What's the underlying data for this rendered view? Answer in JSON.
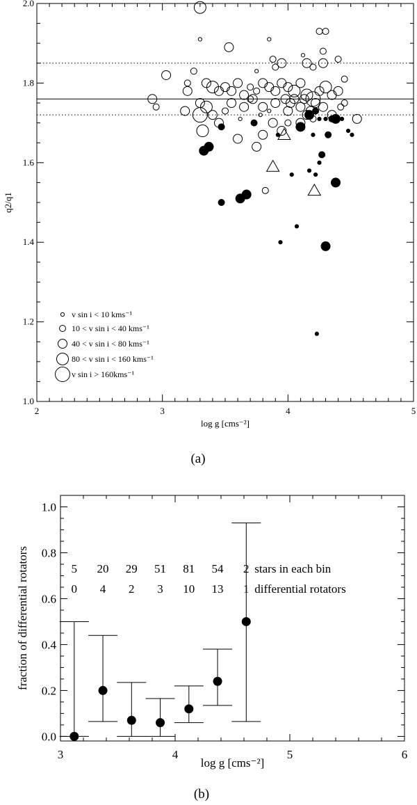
{
  "chart_data": [
    {
      "type": "scatter",
      "panel_label": "(a)",
      "xlabel": "log g [cms⁻²]",
      "ylabel": "q2/q1",
      "xlim": [
        2,
        5
      ],
      "ylim": [
        1.0,
        2.0
      ],
      "x_ticks": [
        "2",
        "3",
        "4",
        "5"
      ],
      "y_ticks": [
        "1.0",
        "1.2",
        "1.4",
        "1.6",
        "1.8",
        "2.0"
      ],
      "reference_lines": {
        "solid": 1.76,
        "dotted": [
          1.72,
          1.85
        ]
      },
      "legend": [
        {
          "size_class": 1,
          "text": "v sin i < 10 kms⁻¹"
        },
        {
          "size_class": 2,
          "text": "10 < v sin i < 40 kms⁻¹"
        },
        {
          "size_class": 3,
          "text": "40 < v sin i < 80 kms⁻¹"
        },
        {
          "size_class": 4,
          "text": "80 < v sin i < 160 kms⁻¹"
        },
        {
          "size_class": 5,
          "text": "v sin i > 160kms⁻¹"
        }
      ],
      "open_points": [
        [
          3.3,
          1.99,
          4
        ],
        [
          3.3,
          1.91,
          1
        ],
        [
          3.85,
          1.91,
          1
        ],
        [
          4.25,
          1.93,
          2
        ],
        [
          4.3,
          1.93,
          2
        ],
        [
          3.53,
          1.89,
          3
        ],
        [
          4.28,
          1.88,
          2
        ],
        [
          4.4,
          1.86,
          2
        ],
        [
          4.12,
          1.87,
          1
        ],
        [
          4.15,
          1.85,
          3
        ],
        [
          4.28,
          1.85,
          3
        ],
        [
          3.88,
          1.86,
          2
        ],
        [
          3.9,
          1.84,
          2
        ],
        [
          3.95,
          1.85,
          3
        ],
        [
          4.2,
          1.84,
          2
        ],
        [
          3.25,
          1.83,
          2
        ],
        [
          3.03,
          1.82,
          3
        ],
        [
          3.75,
          1.83,
          1
        ],
        [
          4.45,
          1.81,
          2
        ],
        [
          2.92,
          1.76,
          3
        ],
        [
          2.95,
          1.74,
          2
        ],
        [
          3.2,
          1.8,
          2
        ],
        [
          3.2,
          1.78,
          3
        ],
        [
          3.35,
          1.8,
          3
        ],
        [
          3.4,
          1.79,
          4
        ],
        [
          3.45,
          1.78,
          3
        ],
        [
          3.5,
          1.79,
          3
        ],
        [
          3.55,
          1.78,
          3
        ],
        [
          3.6,
          1.8,
          3
        ],
        [
          3.65,
          1.77,
          3
        ],
        [
          3.7,
          1.79,
          2
        ],
        [
          3.75,
          1.78,
          2
        ],
        [
          3.8,
          1.8,
          3
        ],
        [
          3.85,
          1.79,
          3
        ],
        [
          3.9,
          1.78,
          3
        ],
        [
          3.95,
          1.8,
          3
        ],
        [
          4.0,
          1.79,
          3
        ],
        [
          4.05,
          1.78,
          4
        ],
        [
          4.1,
          1.8,
          3
        ],
        [
          4.15,
          1.77,
          4
        ],
        [
          4.2,
          1.76,
          5
        ],
        [
          4.25,
          1.78,
          3
        ],
        [
          4.3,
          1.79,
          4
        ],
        [
          4.35,
          1.77,
          3
        ],
        [
          4.4,
          1.78,
          3
        ],
        [
          4.45,
          1.75,
          2
        ],
        [
          3.3,
          1.75,
          3
        ],
        [
          3.35,
          1.74,
          4
        ],
        [
          3.4,
          1.72,
          3
        ],
        [
          3.5,
          1.73,
          2
        ],
        [
          3.55,
          1.75,
          3
        ],
        [
          3.65,
          1.74,
          3
        ],
        [
          3.7,
          1.76,
          2
        ],
        [
          3.8,
          1.74,
          3
        ],
        [
          3.9,
          1.75,
          3
        ],
        [
          4.0,
          1.73,
          3
        ],
        [
          4.05,
          1.76,
          3
        ],
        [
          4.1,
          1.74,
          3
        ],
        [
          4.18,
          1.73,
          3
        ],
        [
          4.22,
          1.75,
          3
        ],
        [
          4.28,
          1.74,
          3
        ],
        [
          4.35,
          1.72,
          3
        ],
        [
          4.42,
          1.74,
          2
        ],
        [
          4.55,
          1.71,
          3
        ],
        [
          3.18,
          1.73,
          3
        ],
        [
          3.3,
          1.72,
          5
        ],
        [
          3.32,
          1.68,
          4
        ],
        [
          3.45,
          1.7,
          3
        ],
        [
          3.6,
          1.66,
          3
        ],
        [
          3.75,
          1.64,
          3
        ],
        [
          3.8,
          1.67,
          3
        ],
        [
          3.88,
          1.7,
          3
        ],
        [
          3.95,
          1.68,
          3
        ],
        [
          4.1,
          1.7,
          3
        ],
        [
          4.15,
          1.72,
          3
        ],
        [
          3.85,
          1.73,
          1
        ],
        [
          3.78,
          1.72,
          1
        ],
        [
          3.62,
          1.71,
          1
        ],
        [
          3.82,
          1.53,
          2
        ],
        [
          4.0,
          1.7,
          2
        ],
        [
          3.72,
          1.76,
          3
        ],
        [
          3.98,
          1.76,
          3
        ],
        [
          4.02,
          1.75,
          3
        ],
        [
          4.13,
          1.76,
          3
        ],
        [
          4.2,
          1.71,
          2
        ]
      ],
      "filled_points": [
        [
          3.47,
          1.69,
          2
        ],
        [
          3.73,
          1.7,
          2
        ],
        [
          3.92,
          1.67,
          1
        ],
        [
          4.1,
          1.69,
          3
        ],
        [
          4.17,
          1.72,
          3
        ],
        [
          4.22,
          1.73,
          2
        ],
        [
          4.25,
          1.71,
          1
        ],
        [
          4.3,
          1.71,
          1
        ],
        [
          4.35,
          1.71,
          2
        ],
        [
          4.38,
          1.71,
          3
        ],
        [
          4.43,
          1.71,
          1
        ],
        [
          4.48,
          1.68,
          1
        ],
        [
          4.51,
          1.67,
          1
        ],
        [
          4.2,
          1.67,
          1
        ],
        [
          4.32,
          1.67,
          2
        ],
        [
          3.33,
          1.63,
          3
        ],
        [
          3.37,
          1.64,
          3
        ],
        [
          4.27,
          1.62,
          2
        ],
        [
          4.25,
          1.6,
          1
        ],
        [
          4.03,
          1.57,
          1
        ],
        [
          4.17,
          1.58,
          1
        ],
        [
          4.22,
          1.57,
          1
        ],
        [
          4.38,
          1.55,
          3
        ],
        [
          3.62,
          1.51,
          3
        ],
        [
          3.67,
          1.52,
          3
        ],
        [
          3.47,
          1.5,
          2
        ],
        [
          4.07,
          1.44,
          1
        ],
        [
          3.94,
          1.4,
          1
        ],
        [
          4.3,
          1.39,
          3
        ],
        [
          4.23,
          1.17,
          1
        ]
      ],
      "triangle_points": [
        [
          3.88,
          1.59
        ],
        [
          3.97,
          1.67
        ],
        [
          4.21,
          1.53
        ]
      ]
    },
    {
      "type": "scatter",
      "panel_label": "(b)",
      "xlabel": "log g [cms⁻²]",
      "ylabel": "fraction of differential rotators",
      "xlim": [
        3,
        6
      ],
      "ylim": [
        -0.02,
        1.05
      ],
      "x_ticks": [
        "3",
        "4",
        "5",
        "6"
      ],
      "y_ticks": [
        "0.0",
        "0.2",
        "0.4",
        "0.6",
        "0.8",
        "1.0"
      ],
      "points": [
        {
          "x": 3.12,
          "y": 0.0,
          "err_low": 0.0,
          "err_high": 0.5
        },
        {
          "x": 3.37,
          "y": 0.2,
          "err_low": 0.065,
          "err_high": 0.44
        },
        {
          "x": 3.62,
          "y": 0.07,
          "err_low": 0.0,
          "err_high": 0.235
        },
        {
          "x": 3.87,
          "y": 0.06,
          "err_low": 0.0,
          "err_high": 0.165
        },
        {
          "x": 4.12,
          "y": 0.12,
          "err_low": 0.06,
          "err_high": 0.22
        },
        {
          "x": 4.37,
          "y": 0.24,
          "err_low": 0.135,
          "err_high": 0.38
        },
        {
          "x": 4.62,
          "y": 0.5,
          "err_low": 0.065,
          "err_high": 0.93
        }
      ],
      "stars_row": [
        "5",
        "20",
        "29",
        "51",
        "81",
        "54",
        "2"
      ],
      "stars_label": "stars in each bin",
      "diff_row": [
        "0",
        "4",
        "2",
        "3",
        "10",
        "13",
        "1"
      ],
      "diff_label": "differential rotators"
    }
  ]
}
